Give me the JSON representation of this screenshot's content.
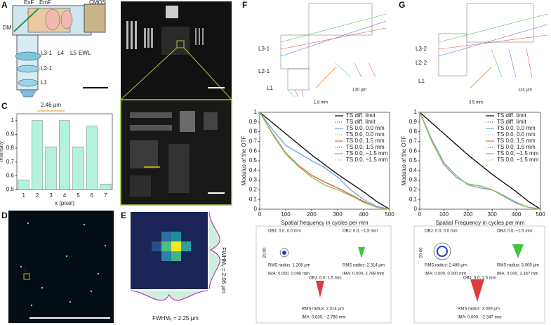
{
  "panel_labels": [
    "A",
    "B",
    "C",
    "D",
    "E",
    "F",
    "G"
  ],
  "panel_a": {
    "labels": [
      "ExF",
      "EmF",
      "CMOS",
      "DM",
      "L3-1",
      "L4",
      "L5",
      "EWL",
      "L2-1",
      "L1"
    ]
  },
  "panel_b": {
    "marker": "C"
  },
  "panel_d": {
    "marker": "e"
  },
  "panel_e": {
    "fwhm_x": "FWHMₓ = 2.25 μm",
    "fwhm_y": "FWHMᵧ = 2.06 μm"
  },
  "panel_f": {
    "lens_labels": [
      "L3-1",
      "L2-1",
      "L1"
    ],
    "inset_scale": "130 μm",
    "depth_scale": "1.8 mm",
    "spots": {
      "scale": "20.00",
      "items": [
        {
          "obj": "OBJ: 0.0, 0.0 mm",
          "rms": "RMS radius: 1.208 μm",
          "ima": "IMA: 0.000, 0.000 mm"
        },
        {
          "obj": "OBJ: 0.0, −1.5 mm",
          "rms": "RMS radius: 2.314 μm",
          "ima": "IMA: 0.000, 2.788 mm"
        },
        {
          "obj": "OBJ: 0.0, 1.5 mm",
          "rms": "RMS radius: 2.314 μm",
          "ima": "IMA: 0.000, −2.788 mm"
        }
      ]
    }
  },
  "panel_g": {
    "lens_labels": [
      "L3-2",
      "L2-2",
      "L1"
    ],
    "inset_scale": "114 μm",
    "depth_scale": "3.5 mm",
    "spots": {
      "scale": "20.00",
      "items": [
        {
          "obj": "OBJ: 0.0, 0.0 mm",
          "rms": "RMS radius: 2.486 μm",
          "ima": "IMA: 0.000, 0.000 mm"
        },
        {
          "obj": "OBJ: 0.0, −1.5 mm",
          "rms": "RMS radius: 3.009 μm",
          "ima": "IMA: 0.000, 2.347 mm"
        },
        {
          "obj": "OBJ: 0.0, 1.5 mm",
          "rms": "RMS radius: 3.009 μm",
          "ima": "IMA: 0.000, −2.347 mm"
        }
      ]
    }
  },
  "chart_data": [
    {
      "type": "bar",
      "annotation": "2.46 μm",
      "x_label": "x (pixel)",
      "y_label": "Intensity",
      "categories": [
        "1",
        "2",
        "3",
        "4",
        "5",
        "6",
        "7"
      ],
      "values": [
        0.57,
        1,
        0.81,
        1,
        0.81,
        0.96,
        0.54
      ],
      "color": "#b4f2df",
      "ylim": [
        0.5,
        1.05
      ],
      "yticks": [
        0.5,
        0.6,
        0.7,
        0.8,
        0.9,
        1
      ]
    },
    {
      "type": "line",
      "x_label": "Spatial frequency in cycles per mm",
      "y_label": "Modulus of the OTF",
      "x": [
        0,
        50,
        100,
        150,
        200,
        250,
        300,
        350,
        400,
        450,
        500
      ],
      "xlim": [
        0,
        500
      ],
      "xticks": [
        0,
        100,
        200,
        300,
        400,
        500
      ],
      "ylim": [
        0,
        1
      ],
      "yticks": [
        0,
        0.1,
        0.2,
        0.3,
        0.4,
        0.5,
        0.6,
        0.7,
        0.8,
        0.9,
        1
      ],
      "legend": "upper right",
      "series": [
        {
          "name": "TS diff. limit",
          "color": "#000000",
          "style": "solid",
          "values": [
            1,
            0.89,
            0.78,
            0.67,
            0.56,
            0.46,
            0.36,
            0.27,
            0.18,
            0.08,
            0
          ]
        },
        {
          "name": "TS diff. limit",
          "color": "#555555",
          "style": "dotted",
          "values": [
            1,
            0.89,
            0.78,
            0.67,
            0.56,
            0.46,
            0.36,
            0.27,
            0.18,
            0.08,
            0
          ]
        },
        {
          "name": "TS 0.0, 0.0 mm",
          "color": "#6f9fe8",
          "style": "solid",
          "values": [
            1,
            0.82,
            0.66,
            0.58,
            0.5,
            0.43,
            0.33,
            0.2,
            0.1,
            0.03,
            0
          ]
        },
        {
          "name": "TS 0.0, 0.0 mm",
          "color": "#9dbcf0",
          "style": "dotted",
          "values": [
            1,
            0.82,
            0.66,
            0.58,
            0.5,
            0.43,
            0.33,
            0.2,
            0.1,
            0.03,
            0
          ]
        },
        {
          "name": "TS 0.0, 1.5 mm",
          "color": "#e06a55",
          "style": "solid",
          "values": [
            1,
            0.78,
            0.58,
            0.45,
            0.35,
            0.28,
            0.22,
            0.15,
            0.08,
            0.02,
            0
          ]
        },
        {
          "name": "TS 0.0, 1.5 mm",
          "color": "#d9403a",
          "style": "dotted",
          "values": [
            1,
            0.78,
            0.58,
            0.45,
            0.35,
            0.28,
            0.22,
            0.15,
            0.08,
            0.02,
            0
          ]
        },
        {
          "name": "TS 0.0, −1.5 mm",
          "color": "#8cbf4a",
          "style": "solid",
          "values": [
            1,
            0.77,
            0.57,
            0.44,
            0.33,
            0.25,
            0.2,
            0.14,
            0.07,
            0.02,
            0
          ]
        },
        {
          "name": "TS 0.0, −1.5 mm",
          "color": "#a8d878",
          "style": "dotted",
          "values": [
            1,
            0.77,
            0.57,
            0.44,
            0.33,
            0.25,
            0.2,
            0.14,
            0.07,
            0.02,
            0
          ]
        }
      ]
    },
    {
      "type": "line",
      "x_label": "Spatial Frequency in cycles per mm",
      "y_label": "Modulus of the OTF",
      "x": [
        0,
        50,
        100,
        150,
        200,
        250,
        300,
        350,
        400,
        450,
        500
      ],
      "xlim": [
        0,
        500
      ],
      "xticks": [
        0,
        100,
        200,
        300,
        400,
        500
      ],
      "ylim": [
        0,
        1
      ],
      "yticks": [
        0,
        0.1,
        0.2,
        0.3,
        0.4,
        0.5,
        0.6,
        0.7,
        0.8,
        0.9,
        1
      ],
      "legend": "upper right",
      "series": [
        {
          "name": "TS diff. limit",
          "color": "#000000",
          "style": "solid",
          "values": [
            1,
            0.89,
            0.78,
            0.67,
            0.56,
            0.46,
            0.36,
            0.27,
            0.18,
            0.08,
            0
          ]
        },
        {
          "name": "TS diff. limit",
          "color": "#555555",
          "style": "dotted",
          "values": [
            1,
            0.89,
            0.78,
            0.67,
            0.56,
            0.46,
            0.36,
            0.27,
            0.18,
            0.08,
            0
          ]
        },
        {
          "name": "TS 0.0, 0.0 mm",
          "color": "#6f9fe8",
          "style": "solid",
          "values": [
            1,
            0.72,
            0.48,
            0.35,
            0.25,
            0.22,
            0.2,
            0.14,
            0.07,
            0.02,
            0
          ]
        },
        {
          "name": "TS 0.0, 0.0 mm",
          "color": "#9dbcf0",
          "style": "dotted",
          "values": [
            1,
            0.72,
            0.48,
            0.35,
            0.25,
            0.22,
            0.2,
            0.14,
            0.07,
            0.02,
            0
          ]
        },
        {
          "name": "TS 0.0, 1.5 mm",
          "color": "#e06a55",
          "style": "solid",
          "values": [
            1,
            0.7,
            0.46,
            0.33,
            0.26,
            0.24,
            0.2,
            0.13,
            0.06,
            0.02,
            0
          ]
        },
        {
          "name": "TS 0.0, 1.5 mm",
          "color": "#d9403a",
          "style": "dotted",
          "values": [
            1,
            0.7,
            0.46,
            0.33,
            0.26,
            0.24,
            0.2,
            0.13,
            0.06,
            0.02,
            0
          ]
        },
        {
          "name": "TS 0.0, −1.5 mm",
          "color": "#8cbf4a",
          "style": "solid",
          "values": [
            1,
            0.7,
            0.46,
            0.33,
            0.26,
            0.24,
            0.2,
            0.13,
            0.06,
            0.02,
            0
          ]
        },
        {
          "name": "TS 0.0, −1.5 mm",
          "color": "#a8d878",
          "style": "dotted",
          "values": [
            1,
            0.7,
            0.46,
            0.33,
            0.26,
            0.24,
            0.2,
            0.13,
            0.06,
            0.02,
            0
          ]
        }
      ]
    }
  ]
}
